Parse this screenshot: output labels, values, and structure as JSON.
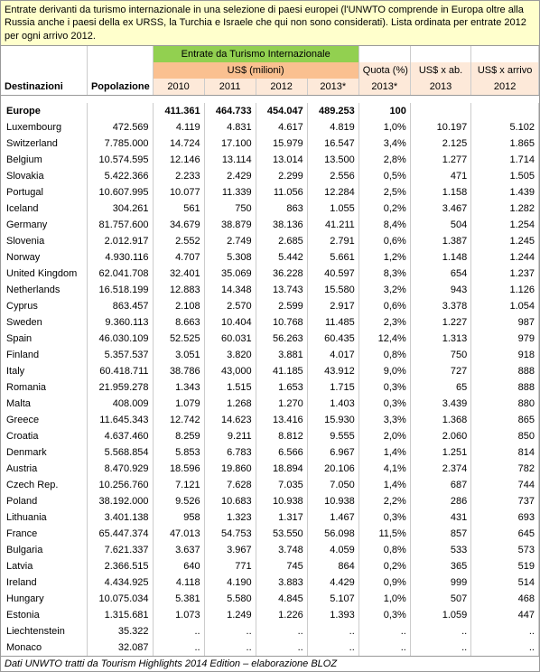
{
  "title_text": "Entrate derivanti da turismo internazionale in una selezione di paesi europei (l'UNWTO comprende in Europa oltre alla Russia anche i paesi della ex URSS, la Turchia e Israele che qui non sono considerati). Lista ordinata per entrate 2012 per ogni arrivo 2012.",
  "footer_text": "Dati UNWTO tratti da Tourism Highlights 2014 Edition – elaborazione BLOZ",
  "headers": {
    "main": "Entrate da Turismo Internazionale",
    "sub": "US$ (milioni)",
    "dest": "Destinazioni",
    "pop": "Popolazione",
    "y2010": "2010",
    "y2011": "2011",
    "y2012": "2012",
    "y2013": "2013*",
    "quota": "Quota (%) 2013*",
    "perab": "US$ x ab. 2013",
    "perarr": "US$ x arrivo 2012"
  },
  "europe": {
    "name": "Europe",
    "pop": "",
    "y2010": "411.361",
    "y2011": "464.733",
    "y2012": "454.047",
    "y2013": "489.253",
    "quota": "100",
    "perab": "",
    "perarr": ""
  },
  "rows": [
    {
      "name": "Luxembourg",
      "pop": "472.569",
      "y2010": "4.119",
      "y2011": "4.831",
      "y2012": "4.617",
      "y2013": "4.819",
      "quota": "1,0%",
      "perab": "10.197",
      "perarr": "5.102"
    },
    {
      "name": "Switzerland",
      "pop": "7.785.000",
      "y2010": "14.724",
      "y2011": "17.100",
      "y2012": "15.979",
      "y2013": "16.547",
      "quota": "3,4%",
      "perab": "2.125",
      "perarr": "1.865"
    },
    {
      "name": "Belgium",
      "pop": "10.574.595",
      "y2010": "12.146",
      "y2011": "13.114",
      "y2012": "13.014",
      "y2013": "13.500",
      "quota": "2,8%",
      "perab": "1.277",
      "perarr": "1.714"
    },
    {
      "name": "Slovakia",
      "pop": "5.422.366",
      "y2010": "2.233",
      "y2011": "2.429",
      "y2012": "2.299",
      "y2013": "2.556",
      "quota": "0,5%",
      "perab": "471",
      "perarr": "1.505"
    },
    {
      "name": "Portugal",
      "pop": "10.607.995",
      "y2010": "10.077",
      "y2011": "11.339",
      "y2012": "11.056",
      "y2013": "12.284",
      "quota": "2,5%",
      "perab": "1.158",
      "perarr": "1.439"
    },
    {
      "name": "Iceland",
      "pop": "304.261",
      "y2010": "561",
      "y2011": "750",
      "y2012": "863",
      "y2013": "1.055",
      "quota": "0,2%",
      "perab": "3.467",
      "perarr": "1.282"
    },
    {
      "name": "Germany",
      "pop": "81.757.600",
      "y2010": "34.679",
      "y2011": "38.879",
      "y2012": "38.136",
      "y2013": "41.211",
      "quota": "8,4%",
      "perab": "504",
      "perarr": "1.254"
    },
    {
      "name": "Slovenia",
      "pop": "2.012.917",
      "y2010": "2.552",
      "y2011": "2.749",
      "y2012": "2.685",
      "y2013": "2.791",
      "quota": "0,6%",
      "perab": "1.387",
      "perarr": "1.245"
    },
    {
      "name": "Norway",
      "pop": "4.930.116",
      "y2010": "4.707",
      "y2011": "5.308",
      "y2012": "5.442",
      "y2013": "5.661",
      "quota": "1,2%",
      "perab": "1.148",
      "perarr": "1.244"
    },
    {
      "name": "United Kingdom",
      "pop": "62.041.708",
      "y2010": "32.401",
      "y2011": "35.069",
      "y2012": "36.228",
      "y2013": "40.597",
      "quota": "8,3%",
      "perab": "654",
      "perarr": "1.237"
    },
    {
      "name": "Netherlands",
      "pop": "16.518.199",
      "y2010": "12.883",
      "y2011": "14.348",
      "y2012": "13.743",
      "y2013": "15.580",
      "quota": "3,2%",
      "perab": "943",
      "perarr": "1.126"
    },
    {
      "name": "Cyprus",
      "pop": "863.457",
      "y2010": "2.108",
      "y2011": "2.570",
      "y2012": "2.599",
      "y2013": "2.917",
      "quota": "0,6%",
      "perab": "3.378",
      "perarr": "1.054"
    },
    {
      "name": "Sweden",
      "pop": "9.360.113",
      "y2010": "8.663",
      "y2011": "10.404",
      "y2012": "10.768",
      "y2013": "11.485",
      "quota": "2,3%",
      "perab": "1.227",
      "perarr": "987"
    },
    {
      "name": "Spain",
      "pop": "46.030.109",
      "y2010": "52.525",
      "y2011": "60.031",
      "y2012": "56.263",
      "y2013": "60.435",
      "quota": "12,4%",
      "perab": "1.313",
      "perarr": "979"
    },
    {
      "name": "Finland",
      "pop": "5.357.537",
      "y2010": "3.051",
      "y2011": "3.820",
      "y2012": "3.881",
      "y2013": "4.017",
      "quota": "0,8%",
      "perab": "750",
      "perarr": "918"
    },
    {
      "name": "Italy",
      "pop": "60.418.711",
      "y2010": "38.786",
      "y2011": "43,000",
      "y2012": "41.185",
      "y2013": "43.912",
      "quota": "9,0%",
      "perab": "727",
      "perarr": "888"
    },
    {
      "name": "Romania",
      "pop": "21.959.278",
      "y2010": "1.343",
      "y2011": "1.515",
      "y2012": "1.653",
      "y2013": "1.715",
      "quota": "0,3%",
      "perab": "65",
      "perarr": "888"
    },
    {
      "name": "Malta",
      "pop": "408.009",
      "y2010": "1.079",
      "y2011": "1.268",
      "y2012": "1.270",
      "y2013": "1.403",
      "quota": "0,3%",
      "perab": "3.439",
      "perarr": "880"
    },
    {
      "name": "Greece",
      "pop": "11.645.343",
      "y2010": "12.742",
      "y2011": "14.623",
      "y2012": "13.416",
      "y2013": "15.930",
      "quota": "3,3%",
      "perab": "1.368",
      "perarr": "865"
    },
    {
      "name": "Croatia",
      "pop": "4.637.460",
      "y2010": "8.259",
      "y2011": "9.211",
      "y2012": "8.812",
      "y2013": "9.555",
      "quota": "2,0%",
      "perab": "2.060",
      "perarr": "850"
    },
    {
      "name": "Denmark",
      "pop": "5.568.854",
      "y2010": "5.853",
      "y2011": "6.783",
      "y2012": "6.566",
      "y2013": "6.967",
      "quota": "1,4%",
      "perab": "1.251",
      "perarr": "814"
    },
    {
      "name": "Austria",
      "pop": "8.470.929",
      "y2010": "18.596",
      "y2011": "19.860",
      "y2012": "18.894",
      "y2013": "20.106",
      "quota": "4,1%",
      "perab": "2.374",
      "perarr": "782"
    },
    {
      "name": "Czech Rep.",
      "pop": "10.256.760",
      "y2010": "7.121",
      "y2011": "7.628",
      "y2012": "7.035",
      "y2013": "7.050",
      "quota": "1,4%",
      "perab": "687",
      "perarr": "744"
    },
    {
      "name": "Poland",
      "pop": "38.192.000",
      "y2010": "9.526",
      "y2011": "10.683",
      "y2012": "10.938",
      "y2013": "10.938",
      "quota": "2,2%",
      "perab": "286",
      "perarr": "737"
    },
    {
      "name": "Lithuania",
      "pop": "3.401.138",
      "y2010": "958",
      "y2011": "1.323",
      "y2012": "1.317",
      "y2013": "1.467",
      "quota": "0,3%",
      "perab": "431",
      "perarr": "693"
    },
    {
      "name": "France",
      "pop": "65.447.374",
      "y2010": "47.013",
      "y2011": "54.753",
      "y2012": "53.550",
      "y2013": "56.098",
      "quota": "11,5%",
      "perab": "857",
      "perarr": "645"
    },
    {
      "name": "Bulgaria",
      "pop": "7.621.337",
      "y2010": "3.637",
      "y2011": "3.967",
      "y2012": "3.748",
      "y2013": "4.059",
      "quota": "0,8%",
      "perab": "533",
      "perarr": "573"
    },
    {
      "name": "Latvia",
      "pop": "2.366.515",
      "y2010": "640",
      "y2011": "771",
      "y2012": "745",
      "y2013": "864",
      "quota": "0,2%",
      "perab": "365",
      "perarr": "519"
    },
    {
      "name": "Ireland",
      "pop": "4.434.925",
      "y2010": "4.118",
      "y2011": "4.190",
      "y2012": "3.883",
      "y2013": "4.429",
      "quota": "0,9%",
      "perab": "999",
      "perarr": "514"
    },
    {
      "name": "Hungary",
      "pop": "10.075.034",
      "y2010": "5.381",
      "y2011": "5.580",
      "y2012": "4.845",
      "y2013": "5.107",
      "quota": "1,0%",
      "perab": "507",
      "perarr": "468"
    },
    {
      "name": "Estonia",
      "pop": "1.315.681",
      "y2010": "1.073",
      "y2011": "1.249",
      "y2012": "1.226",
      "y2013": "1.393",
      "quota": "0,3%",
      "perab": "1.059",
      "perarr": "447"
    },
    {
      "name": "Liechtenstein",
      "pop": "35.322",
      "y2010": "..",
      "y2011": "..",
      "y2012": "..",
      "y2013": "..",
      "quota": "..",
      "perab": "..",
      "perarr": ".."
    },
    {
      "name": "Monaco",
      "pop": "32.087",
      "y2010": "..",
      "y2011": "..",
      "y2012": "..",
      "y2013": "..",
      "quota": "..",
      "perab": "..",
      "perarr": ".."
    }
  ]
}
